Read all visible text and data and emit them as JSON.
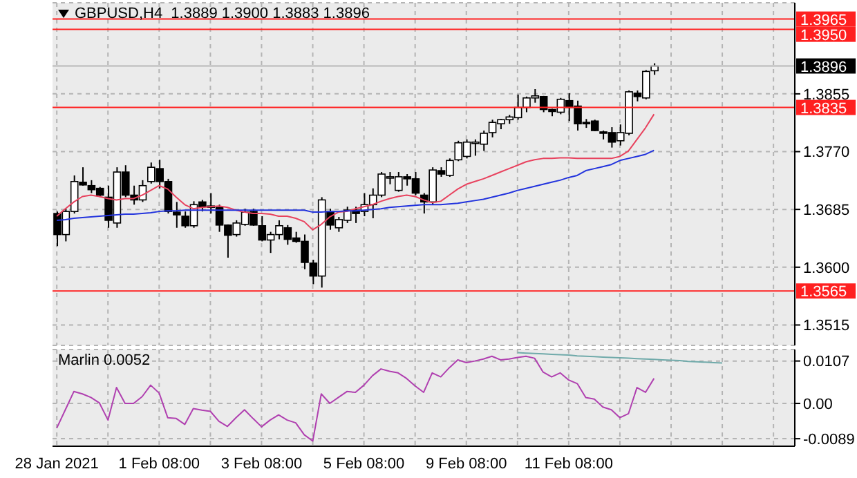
{
  "chart_data": [
    {
      "type": "candlestick",
      "title": "GBPUSD,H4  1.3889 1.3900 1.3883 1.3896",
      "categories": [
        null,
        null,
        null,
        null,
        null,
        null,
        null,
        null,
        null,
        null,
        null,
        null,
        null,
        null,
        null,
        null,
        null,
        null,
        null,
        null,
        null,
        null,
        null,
        null,
        null,
        null,
        null,
        null,
        null,
        null,
        null,
        null,
        null,
        null,
        null,
        null,
        null,
        null,
        null,
        null,
        null,
        null,
        null,
        null,
        null,
        null,
        null,
        null,
        null,
        null,
        null,
        null,
        null,
        null,
        null,
        null,
        null,
        null,
        null,
        null,
        null,
        null,
        null,
        null,
        null,
        null,
        null,
        null,
        null,
        null,
        null,
        null,
        null,
        null,
        null,
        null,
        null,
        null,
        null,
        null,
        null,
        null,
        null,
        null,
        null,
        null,
        null
      ],
      "ohlc": [
        [
          1.3679,
          1.3682,
          1.3631,
          1.3648
        ],
        [
          1.3648,
          1.3686,
          1.3638,
          1.3682
        ],
        [
          1.3682,
          1.3735,
          1.3679,
          1.3726
        ],
        [
          1.3725,
          1.3747,
          1.372,
          1.3721
        ],
        [
          1.372,
          1.3728,
          1.3709,
          1.3714
        ],
        [
          1.3716,
          1.3718,
          1.3703,
          1.3706
        ],
        [
          1.3703,
          1.372,
          1.3658,
          1.3669
        ],
        [
          1.3665,
          1.3747,
          1.3658,
          1.374
        ],
        [
          1.374,
          1.375,
          1.3703,
          1.3706
        ],
        [
          1.3706,
          1.372,
          1.3692,
          1.3699
        ],
        [
          1.3699,
          1.3728,
          1.3696,
          1.372
        ],
        [
          1.3726,
          1.3754,
          1.3723,
          1.3747
        ],
        [
          1.3745,
          1.3758,
          1.3716,
          1.3726
        ],
        [
          1.3726,
          1.373,
          1.3679,
          1.3682
        ],
        [
          1.3681,
          1.3696,
          1.3658,
          1.3677
        ],
        [
          1.3675,
          1.3682,
          1.3658,
          1.3661
        ],
        [
          1.3661,
          1.3697,
          1.3658,
          1.3692
        ],
        [
          1.3696,
          1.3699,
          1.3682,
          1.3689
        ],
        [
          1.3689,
          1.3709,
          1.3679,
          1.3688
        ],
        [
          1.3688,
          1.3692,
          1.3652,
          1.3662
        ],
        [
          1.3662,
          1.3663,
          1.3614,
          1.3647
        ],
        [
          1.3648,
          1.3669,
          1.3645,
          1.3665
        ],
        [
          1.3663,
          1.3686,
          1.3661,
          1.3681
        ],
        [
          1.3682,
          1.3686,
          1.3661,
          1.3662
        ],
        [
          1.3661,
          1.3675,
          1.3638,
          1.364
        ],
        [
          1.364,
          1.3652,
          1.3621,
          1.3648
        ],
        [
          1.3648,
          1.3669,
          1.3641,
          1.3661
        ],
        [
          1.3658,
          1.3662,
          1.3633,
          1.3641
        ],
        [
          1.3643,
          1.3652,
          1.3636,
          1.3638
        ],
        [
          1.3638,
          1.3648,
          1.3597,
          1.3607
        ],
        [
          1.3606,
          1.3611,
          1.3575,
          1.3587
        ],
        [
          1.3587,
          1.3703,
          1.357,
          1.3699
        ],
        [
          1.3682,
          1.3686,
          1.3655,
          1.3662
        ],
        [
          1.3658,
          1.3674,
          1.3652,
          1.367
        ],
        [
          1.3669,
          1.3689,
          1.3665,
          1.3684
        ],
        [
          1.3684,
          1.3689,
          1.3665,
          1.3679
        ],
        [
          1.3682,
          1.3709,
          1.3675,
          1.3692
        ],
        [
          1.3692,
          1.3716,
          1.3672,
          1.3706
        ],
        [
          1.3706,
          1.374,
          1.3703,
          1.3737
        ],
        [
          1.3731,
          1.374,
          1.3722,
          1.3733
        ],
        [
          1.3713,
          1.374,
          1.3711,
          1.3733
        ],
        [
          1.3733,
          1.3737,
          1.372,
          1.373
        ],
        [
          1.373,
          1.374,
          1.3706,
          1.3709
        ],
        [
          1.3706,
          1.3709,
          1.3679,
          1.3696
        ],
        [
          1.3696,
          1.3747,
          1.3692,
          1.3743
        ],
        [
          1.3742,
          1.3747,
          1.3733,
          1.3737
        ],
        [
          1.3735,
          1.376,
          1.3733,
          1.3757
        ],
        [
          1.3758,
          1.3786,
          1.3756,
          1.3783
        ],
        [
          1.3763,
          1.3788,
          1.376,
          1.3784
        ],
        [
          1.3782,
          1.3788,
          1.3764,
          1.3784
        ],
        [
          1.3781,
          1.3801,
          1.3771,
          1.3797
        ],
        [
          1.3798,
          1.3817,
          1.3791,
          1.3813
        ],
        [
          1.3811,
          1.3818,
          1.3803,
          1.3817
        ],
        [
          1.3817,
          1.3824,
          1.3811,
          1.3821
        ],
        [
          1.382,
          1.3854,
          1.3817,
          1.3835
        ],
        [
          1.3835,
          1.3851,
          1.3828,
          1.3849
        ],
        [
          1.3849,
          1.3862,
          1.3842,
          1.3852
        ],
        [
          1.3851,
          1.3852,
          1.3828,
          1.3832
        ],
        [
          1.3832,
          1.3833,
          1.3822,
          1.3829
        ],
        [
          1.3828,
          1.3849,
          1.3825,
          1.3847
        ],
        [
          1.3845,
          1.3856,
          1.3815,
          1.3835
        ],
        [
          1.3837,
          1.3845,
          1.3801,
          1.3811
        ],
        [
          1.3813,
          1.3818,
          1.3805,
          1.3811
        ],
        [
          1.3815,
          1.3817,
          1.38,
          1.3801
        ],
        [
          1.3798,
          1.3801,
          1.3788,
          1.3797
        ],
        [
          1.3798,
          1.3806,
          1.3776,
          1.3784
        ],
        [
          1.3786,
          1.381,
          1.3779,
          1.3798
        ],
        [
          1.3797,
          1.386,
          1.3794,
          1.3858
        ],
        [
          1.3856,
          1.386,
          1.3844,
          1.3851
        ],
        [
          1.3849,
          1.389,
          1.3847,
          1.3888
        ],
        [
          1.3889,
          1.39,
          1.3883,
          1.3896
        ],
        null,
        null,
        null,
        null,
        null,
        null,
        null,
        null,
        null,
        null,
        null,
        null,
        null,
        null,
        null,
        null
      ],
      "series": [
        {
          "type": "line",
          "color": "#e8425e",
          "values": [
            1.3675,
            1.3686,
            1.3696,
            1.3704,
            1.3706,
            1.3704,
            1.3701,
            1.3699,
            1.3701,
            1.3701,
            1.3706,
            1.3713,
            1.372,
            1.3715,
            1.3703,
            1.3692,
            1.3686,
            1.3688,
            1.3689,
            1.369,
            1.3688,
            1.3684,
            1.3681,
            1.3679,
            1.3679,
            1.3678,
            1.3675,
            1.3675,
            1.3672,
            1.3667,
            1.3655,
            1.3663,
            1.3674,
            1.3681,
            1.3682,
            1.3686,
            1.3689,
            1.3692,
            1.3697,
            1.3701,
            1.3704,
            1.3706,
            1.3704,
            1.3699,
            1.3695,
            1.3697,
            1.3706,
            1.3715,
            1.3722,
            1.3726,
            1.373,
            1.3735,
            1.374,
            1.3745,
            1.375,
            1.3755,
            1.3758,
            1.376,
            1.376,
            1.3761,
            1.3761,
            1.376,
            1.376,
            1.376,
            1.376,
            1.376,
            1.3763,
            1.3771,
            1.3788,
            1.3805,
            1.3825,
            null,
            null,
            null,
            null,
            null,
            null,
            null,
            null,
            null,
            null,
            null,
            null,
            null,
            null,
            null,
            null
          ]
        },
        {
          "type": "line",
          "color": "#2233dd",
          "values": [
            1.3669,
            1.367,
            1.3672,
            1.3673,
            1.3674,
            1.3675,
            1.3676,
            1.3677,
            1.3678,
            1.3678,
            1.3679,
            1.368,
            1.3682,
            1.3683,
            1.3683,
            1.3684,
            1.3684,
            1.3684,
            1.3684,
            1.3684,
            1.3684,
            1.3684,
            1.3684,
            1.3684,
            1.3684,
            1.3684,
            1.3684,
            1.3684,
            1.3684,
            1.3684,
            1.3681,
            1.3681,
            1.3682,
            1.3682,
            1.3683,
            1.3683,
            1.3684,
            1.3685,
            1.3686,
            1.3688,
            1.3689,
            1.369,
            1.3691,
            1.3692,
            1.3692,
            1.3692,
            1.3693,
            1.3694,
            1.3696,
            1.3698,
            1.37,
            1.3703,
            1.3706,
            1.3709,
            1.3713,
            1.3716,
            1.3719,
            1.3722,
            1.3725,
            1.3728,
            1.3732,
            1.3735,
            1.3742,
            1.3745,
            1.3748,
            1.3751,
            1.3757,
            1.376,
            1.3763,
            1.3766,
            1.3772,
            null,
            null,
            null,
            null,
            null,
            null,
            null,
            null,
            null,
            null,
            null,
            null,
            null,
            null,
            null,
            null
          ]
        }
      ],
      "ylim": [
        1.3485,
        1.3989
      ],
      "yticks": [
        1.3515,
        {
          "value": 1.36,
          "label": "1.3600"
        },
        1.3685,
        {
          "value": 1.377,
          "label": "1.3770"
        },
        1.3855
      ],
      "grid": true,
      "tick_labels": "y",
      "ref_lines": [
        {
          "axis": "y",
          "value": 1.3965,
          "label": "1.3965",
          "color": "#ff2020"
        },
        {
          "axis": "y",
          "value": 1.395,
          "label": "1.3950",
          "color": "#ff2020"
        },
        {
          "axis": "y",
          "value": 1.3896,
          "label": "1.3896",
          "color": "#b8b8b8"
        },
        {
          "axis": "y",
          "value": 1.3835,
          "label": "1.3835",
          "color": "#ff2020"
        },
        {
          "axis": "y",
          "value": 1.3565,
          "label": "1.3565",
          "color": "#ff2020"
        }
      ]
    },
    {
      "type": "line",
      "title": "Marlin 0.0052",
      "categories": [
        "28 Jan 2021",
        null,
        null,
        null,
        null,
        null,
        null,
        null,
        null,
        null,
        null,
        null,
        "1 Feb 08:00",
        null,
        null,
        null,
        null,
        null,
        null,
        null,
        null,
        null,
        null,
        null,
        "3 Feb 08:00",
        null,
        null,
        null,
        null,
        null,
        null,
        null,
        null,
        null,
        null,
        null,
        "5 Feb 08:00",
        null,
        null,
        null,
        null,
        null,
        null,
        null,
        null,
        null,
        null,
        null,
        "9 Feb 08:00",
        null,
        null,
        null,
        null,
        null,
        null,
        null,
        null,
        null,
        null,
        null,
        "11 Feb 08:00",
        null,
        null,
        null,
        null,
        null,
        null,
        null,
        null,
        null,
        null,
        null,
        null,
        null,
        null,
        null,
        null,
        null,
        null,
        null,
        null,
        null,
        null,
        null,
        null,
        null,
        null
      ],
      "series": [
        {
          "color": "#b040b0",
          "values": [
            -0.0062,
            -0.0016,
            0.003,
            0.0024,
            0.0015,
            0.0001,
            -0.0042,
            0.004,
            0,
            0,
            0.0017,
            0.0046,
            0.0026,
            -0.0036,
            -0.0038,
            -0.0053,
            -0.0013,
            -0.0017,
            -0.002,
            -0.0045,
            -0.0058,
            -0.0036,
            -0.0016,
            -0.0038,
            -0.0059,
            -0.0042,
            -0.0029,
            -0.0042,
            -0.0049,
            -0.0079,
            -0.0095,
            0.0024,
            0,
            0.0015,
            0.003,
            0.0028,
            0.0046,
            0.007,
            0.0087,
            0.0081,
            0.0077,
            0.0063,
            0.0044,
            0.0028,
            0.0077,
            0.0067,
            0.009,
            0.011,
            0.0103,
            0.0107,
            0.0112,
            0.0119,
            0.011,
            0.0112,
            0.0116,
            0.0119,
            0.0114,
            0.0079,
            0.0067,
            0.0077,
            0.0059,
            0.005,
            0.0015,
            0.0011,
            -0.0009,
            -0.0016,
            -0.0036,
            -0.0026,
            0.004,
            0.0028,
            0.0063,
            null,
            null,
            null,
            null,
            null,
            null,
            null,
            null,
            null,
            null,
            null,
            null,
            null,
            null,
            null,
            null
          ]
        },
        {
          "color": "#70aaaa",
          "values": [
            null,
            null,
            null,
            null,
            null,
            null,
            null,
            null,
            null,
            null,
            null,
            null,
            null,
            null,
            null,
            null,
            null,
            null,
            null,
            null,
            null,
            null,
            null,
            null,
            null,
            null,
            null,
            null,
            null,
            null,
            null,
            null,
            null,
            null,
            null,
            null,
            null,
            null,
            null,
            null,
            null,
            null,
            null,
            null,
            null,
            null,
            null,
            null,
            null,
            null,
            null,
            null,
            null,
            null,
            0.0128,
            0.0127,
            0.0126,
            0.0125,
            0.0124,
            0.0123,
            0.0122,
            0.012,
            0.0119,
            0.0118,
            0.0117,
            0.0116,
            0.0115,
            0.0114,
            0.0113,
            0.0112,
            0.0111,
            0.011,
            0.0109,
            0.0108,
            0.0106,
            0.0105,
            0.0104,
            0.0103,
            0.0102,
            null,
            null,
            null,
            null,
            null,
            null,
            null,
            null
          ]
        }
      ],
      "ylim": [
        -0.0108,
        0.0136
      ],
      "yticks": [
        0.0107,
        {
          "value": 0,
          "label": "0.00"
        },
        -0.0089
      ],
      "grid": true
    }
  ]
}
